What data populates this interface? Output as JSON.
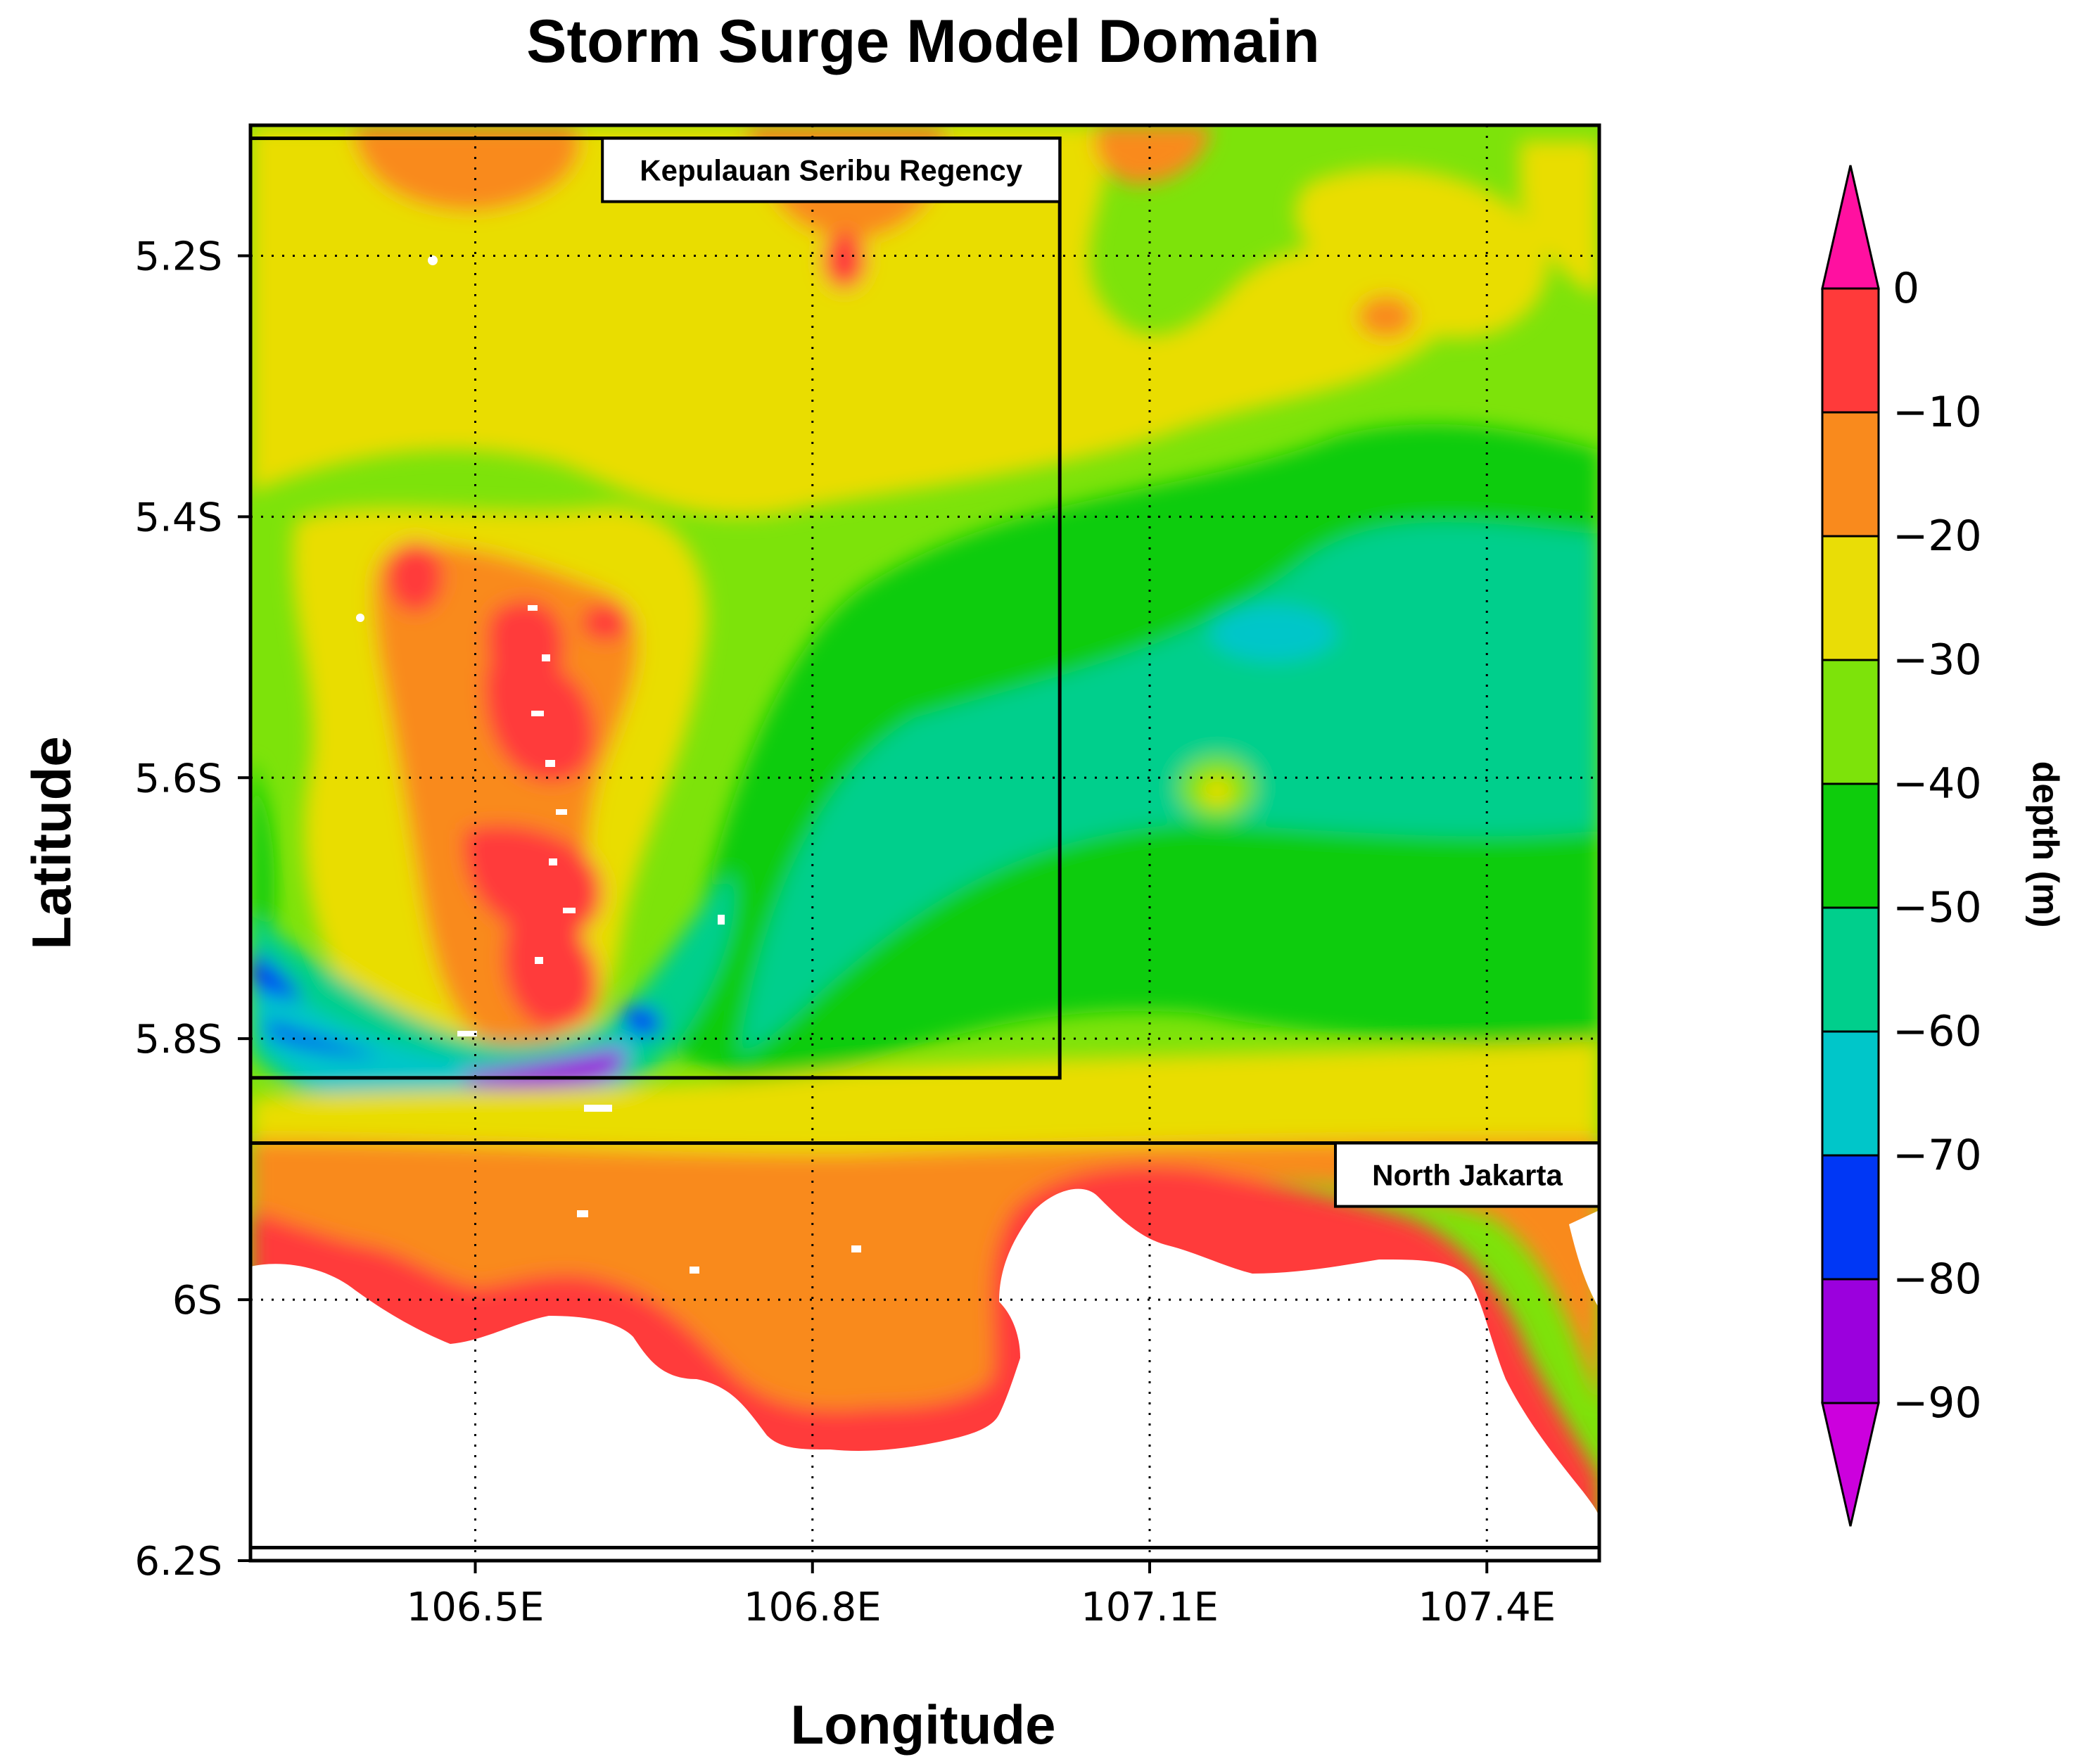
{
  "title": "Storm Surge Model Domain",
  "x_axis_title": "Longitude",
  "y_axis_title": "Latitude",
  "lon_range": [
    106.3,
    107.5
  ],
  "lat_range": [
    -6.2,
    -5.1
  ],
  "lon_ticks": [
    {
      "value": 106.5,
      "label": "106.5E"
    },
    {
      "value": 106.8,
      "label": "106.8E"
    },
    {
      "value": 107.1,
      "label": "107.1E"
    },
    {
      "value": 107.4,
      "label": "107.4E"
    }
  ],
  "lat_ticks": [
    {
      "value": -5.2,
      "label": "5.2S"
    },
    {
      "value": -5.4,
      "label": "5.4S"
    },
    {
      "value": -5.6,
      "label": "5.6S"
    },
    {
      "value": -5.8,
      "label": "5.8S"
    },
    {
      "value": -6.0,
      "label": "6S"
    },
    {
      "value": -6.2,
      "label": "6.2S"
    }
  ],
  "grid": "dotted",
  "regions": [
    {
      "label": "Kepulauan Seribu Regency",
      "lon": [
        106.3,
        107.02
      ],
      "lat": [
        -5.83,
        -5.11
      ]
    },
    {
      "label": "North Jakarta",
      "lon": [
        106.3,
        107.5
      ],
      "lat": [
        -6.19,
        -5.88
      ]
    }
  ],
  "colorbar": {
    "label": "depth (m)",
    "levels": [
      0,
      -10,
      -20,
      -30,
      -40,
      -50,
      -60,
      -70,
      -80,
      -90
    ],
    "level_labels": [
      "0",
      "−10",
      "−20",
      "−30",
      "−40",
      "−50",
      "−60",
      "−70",
      "−80",
      "−90"
    ],
    "colors": [
      "#ff3a3a",
      "#f98a1d",
      "#e9dd06",
      "#7de30a",
      "#0ecc0c",
      "#00cf8c",
      "#00c6c9",
      "#0037f5",
      "#9b00dd"
    ],
    "over_color": "#ff10a0",
    "under_color": "#cc00dd"
  },
  "land_color": "#ffffff"
}
